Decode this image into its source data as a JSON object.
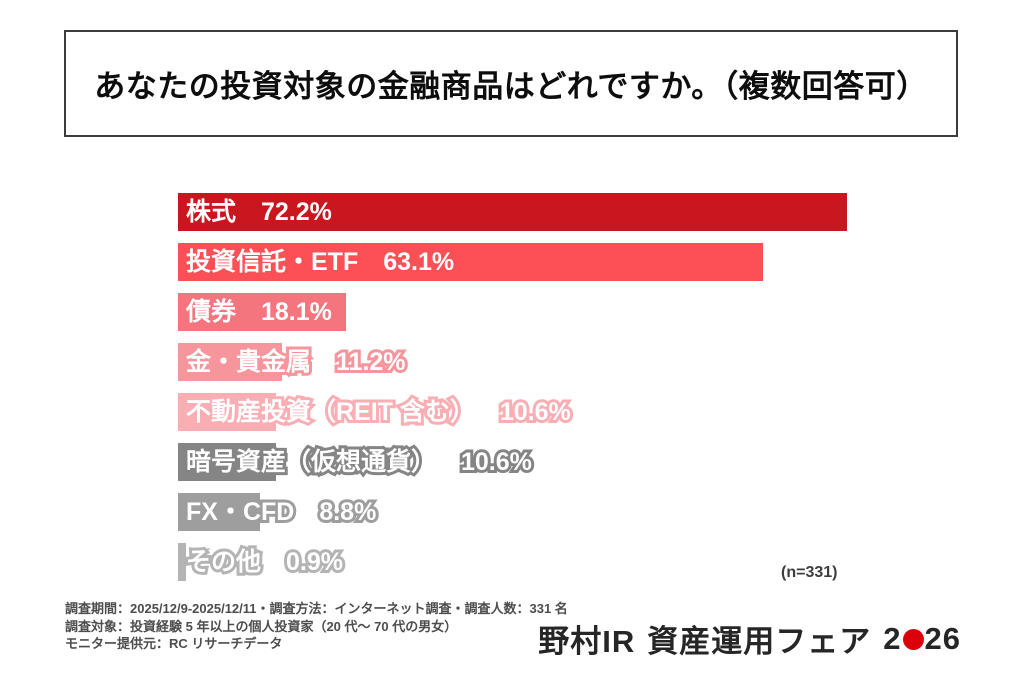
{
  "header": {
    "title": "あなたの投資対象の金融商品はどれですか。（複数回答可）"
  },
  "chart_data": {
    "type": "bar",
    "orientation": "horizontal",
    "title": "あなたの投資対象の金融商品はどれですか。（複数回答可）",
    "categories": [
      "株式",
      "投資信託・ETF",
      "債券",
      "金・貴金属",
      "不動産投資（REIT 含む）",
      "暗号資産（仮想通貨）",
      "FX・CFD",
      "その他"
    ],
    "values": [
      72.2,
      63.1,
      18.1,
      11.2,
      10.6,
      10.6,
      8.8,
      0.9
    ],
    "value_labels": [
      "72.2%",
      "63.1%",
      "18.1%",
      "11.2%",
      "10.6%",
      "10.6%",
      "8.8%",
      "0.9%"
    ],
    "bar_colors": [
      "#c9161f",
      "#fb5156",
      "#f5757e",
      "#f7959d",
      "#f9aeb4",
      "#858585",
      "#9e9e9e",
      "#b4b4b4"
    ],
    "label_text_color": "#ffffff",
    "xlim": [
      0,
      72.2
    ],
    "grid": false,
    "legend": false,
    "n_label": "(n=331)",
    "sample_size": 331
  },
  "footnotes": {
    "line1": "調査期間：2025/12/9-2025/12/11・調査方法：インターネット調査・調査人数：331 名",
    "line2": "調査対象：投資経験 5 年以上の個人投資家（20 代～ 70 代の男女）",
    "line3": "モニター提供元：RC リサーチデータ"
  },
  "logo": {
    "part1": "野村IR",
    "part2": "資産運用フェア",
    "year_start": "2",
    "year_end": "26",
    "dot_color": "#dc000c"
  }
}
